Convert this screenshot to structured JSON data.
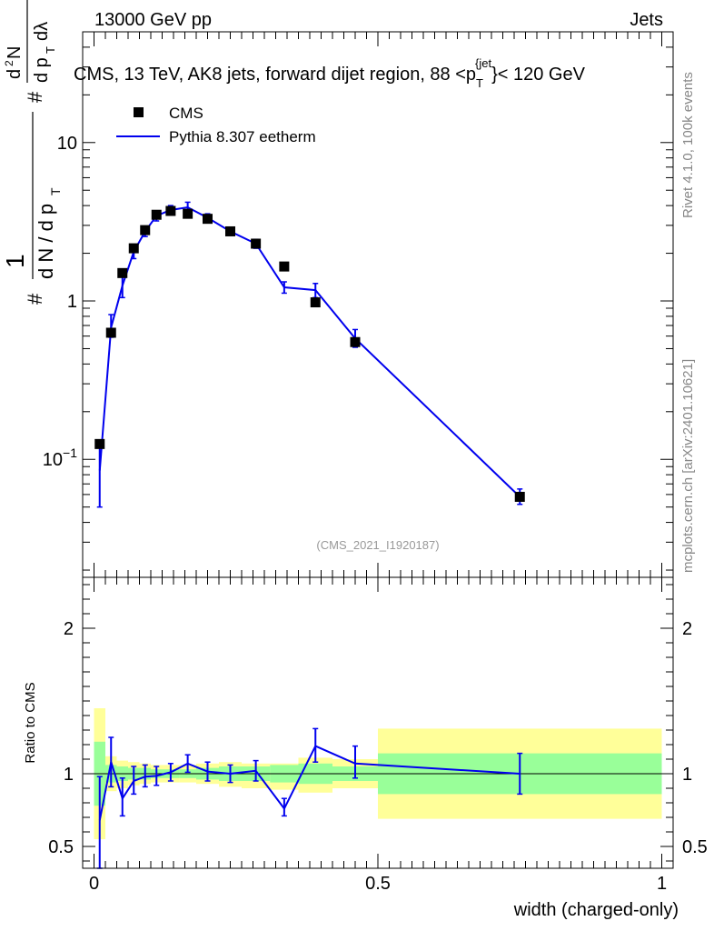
{
  "header": {
    "left": "13000 GeV pp",
    "right": "Jets"
  },
  "side_text": {
    "rivet": "Rivet 4.1.0,  100k events",
    "mcplots": "mcplots.cern.ch [arXiv:2401.10621]"
  },
  "chart_data": [
    {
      "type": "scatter",
      "title": "CMS, 13 TeV, AK8 jets, forward dijet region, 88 <p_T^{jet}< 120 GeV",
      "title_parts": {
        "main": "CMS, 13 TeV, AK8 jets, forward dijet region, 88 <p",
        "sub": "T",
        "sup": "{jet",
        "tail": "}< 120 GeV"
      },
      "watermark": "(CMS_2021_I1920187)",
      "ylabel": "1/(dN/dp_T) d^2N/(dp_T dλ)",
      "yscale": "log",
      "xlim": [
        -0.02,
        1.02
      ],
      "ylim": [
        0.018,
        50
      ],
      "y_tick_labels": [
        "10^-1",
        "1",
        "10"
      ],
      "legend": [
        {
          "name": "CMS",
          "marker": "square",
          "color": "#000000"
        },
        {
          "name": "Pythia 8.307 eetherm",
          "marker": "line",
          "color": "#0000ee"
        }
      ],
      "series": [
        {
          "name": "CMS",
          "x": [
            0.01,
            0.03,
            0.05,
            0.07,
            0.09,
            0.11,
            0.135,
            0.165,
            0.2,
            0.24,
            0.285,
            0.335,
            0.39,
            0.46,
            0.75
          ],
          "y": [
            0.125,
            0.63,
            1.5,
            2.15,
            2.8,
            3.5,
            3.7,
            3.55,
            3.3,
            2.75,
            2.3,
            1.65,
            0.98,
            0.55,
            0.058
          ]
        },
        {
          "name": "Pythia 8.307 eetherm",
          "x": [
            0.01,
            0.03,
            0.05,
            0.07,
            0.09,
            0.11,
            0.135,
            0.165,
            0.2,
            0.24,
            0.285,
            0.335,
            0.39,
            0.46,
            0.75
          ],
          "y": [
            0.085,
            0.68,
            1.25,
            2.05,
            2.75,
            3.45,
            3.75,
            3.9,
            3.35,
            2.75,
            2.3,
            1.22,
            1.17,
            0.58,
            0.058
          ],
          "err_low": [
            0.05,
            0.59,
            1.05,
            1.85,
            2.55,
            3.2,
            3.5,
            3.6,
            3.15,
            2.6,
            2.15,
            1.12,
            1.05,
            0.51,
            0.052
          ],
          "err_high": [
            0.12,
            0.82,
            1.45,
            2.25,
            2.95,
            3.7,
            4.0,
            4.2,
            3.55,
            2.9,
            2.45,
            1.32,
            1.29,
            0.66,
            0.065
          ]
        }
      ]
    },
    {
      "type": "line",
      "ylabel": "Ratio to CMS",
      "xlabel": "width (charged-only)",
      "xlim": [
        -0.02,
        1.02
      ],
      "ylim": [
        0.35,
        2.35
      ],
      "x_ticks": [
        0,
        0.5,
        1
      ],
      "x_tick_labels": [
        "0",
        "0.5",
        "1"
      ],
      "y_ticks": [
        0.5,
        1,
        2
      ],
      "y_tick_labels": [
        "0.5",
        "1",
        "2"
      ],
      "bands": {
        "edges": [
          0.0,
          0.02,
          0.04,
          0.06,
          0.08,
          0.1,
          0.12,
          0.15,
          0.18,
          0.22,
          0.26,
          0.31,
          0.36,
          0.42,
          0.5,
          1.0
        ],
        "yellow_low": [
          0.55,
          0.88,
          0.9,
          0.92,
          0.93,
          0.94,
          0.94,
          0.94,
          0.93,
          0.91,
          0.9,
          0.89,
          0.87,
          0.9,
          0.69
        ],
        "yellow_high": [
          1.45,
          1.12,
          1.09,
          1.08,
          1.07,
          1.06,
          1.06,
          1.06,
          1.07,
          1.08,
          1.07,
          1.07,
          1.11,
          1.1,
          1.31
        ],
        "green_low": [
          0.78,
          0.94,
          0.95,
          0.96,
          0.96,
          0.97,
          0.97,
          0.97,
          0.96,
          0.95,
          0.95,
          0.94,
          0.93,
          0.95,
          0.86
        ],
        "green_high": [
          1.22,
          1.06,
          1.05,
          1.04,
          1.04,
          1.03,
          1.03,
          1.03,
          1.04,
          1.05,
          1.05,
          1.06,
          1.07,
          1.05,
          1.14
        ]
      },
      "series": [
        {
          "name": "Pythia 8.307 eetherm / CMS",
          "x": [
            0.01,
            0.03,
            0.05,
            0.07,
            0.09,
            0.11,
            0.135,
            0.165,
            0.2,
            0.24,
            0.285,
            0.335,
            0.39,
            0.46,
            0.75
          ],
          "y": [
            0.68,
            1.08,
            0.83,
            0.95,
            0.98,
            0.985,
            1.01,
            1.07,
            1.015,
            1.0,
            1.02,
            0.76,
            1.19,
            1.07,
            1.0
          ],
          "err_low": [
            0.35,
            0.91,
            0.71,
            0.86,
            0.91,
            0.92,
            0.95,
            1.01,
            0.95,
            0.94,
            0.95,
            0.71,
            1.08,
            0.97,
            0.86
          ],
          "err_high": [
            0.98,
            1.25,
            0.97,
            1.05,
            1.06,
            1.05,
            1.07,
            1.13,
            1.08,
            1.06,
            1.09,
            0.83,
            1.31,
            1.19,
            1.14
          ]
        }
      ],
      "reference_line": 1.0
    }
  ]
}
